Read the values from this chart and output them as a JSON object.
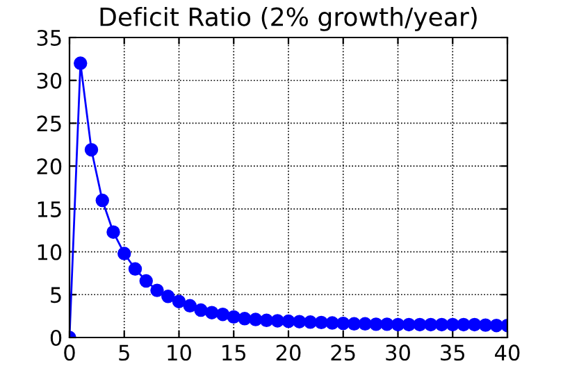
{
  "chart_data": {
    "type": "line",
    "title": "Deficit Ratio (2% growth/year)",
    "x": [
      0,
      1,
      2,
      3,
      4,
      5,
      6,
      7,
      8,
      9,
      10,
      11,
      12,
      13,
      14,
      15,
      16,
      17,
      18,
      19,
      20,
      21,
      22,
      23,
      24,
      25,
      26,
      27,
      28,
      29,
      30,
      31,
      32,
      33,
      34,
      35,
      36,
      37,
      38,
      39,
      40
    ],
    "series": [
      {
        "color": "#0000ff",
        "values": [
          0,
          32,
          21.9,
          16,
          12.3,
          9.8,
          8,
          6.6,
          5.5,
          4.8,
          4.2,
          3.7,
          3.2,
          2.9,
          2.7,
          2.4,
          2.2,
          2.1,
          2.0,
          1.95,
          1.9,
          1.85,
          1.8,
          1.75,
          1.7,
          1.65,
          1.6,
          1.6,
          1.55,
          1.55,
          1.5,
          1.5,
          1.5,
          1.5,
          1.5,
          1.5,
          1.5,
          1.5,
          1.45,
          1.4,
          1.4
        ]
      }
    ],
    "xlim": [
      0,
      40
    ],
    "ylim": [
      0,
      35
    ],
    "xticks": [
      0,
      5,
      10,
      15,
      20,
      25,
      30,
      35,
      40
    ],
    "yticks": [
      0,
      5,
      10,
      15,
      20,
      25,
      30,
      35
    ],
    "grid": true,
    "marker": "circle",
    "line_style": "solid",
    "legend": false
  }
}
